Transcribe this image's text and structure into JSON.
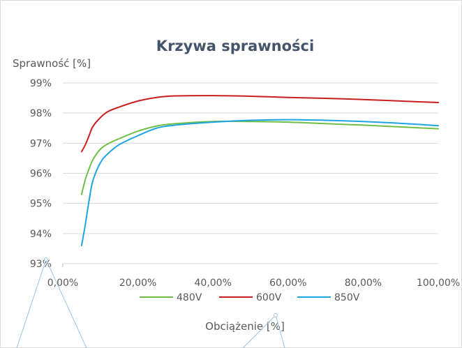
{
  "chart_data": {
    "type": "line",
    "title": "Krzywa sprawności",
    "ylabel": "Sprawność [%]",
    "xlabel": "Obciążenie [%]",
    "xlim": [
      0,
      100
    ],
    "ylim": [
      93,
      99
    ],
    "x_ticks": [
      0,
      20,
      40,
      60,
      80,
      100
    ],
    "x_tick_labels": [
      "0,00%",
      "20,00%",
      "40,00%",
      "60,00%",
      "80,00%",
      "100,00%"
    ],
    "y_ticks": [
      93,
      94,
      95,
      96,
      97,
      98,
      99
    ],
    "y_tick_labels": [
      "93%",
      "94%",
      "95%",
      "96%",
      "97%",
      "98%",
      "99%"
    ],
    "grid": "horizontal",
    "legend_position": "bottom",
    "series": [
      {
        "name": "480V",
        "color": "#70bf44",
        "x": [
          5,
          6,
          7,
          8,
          10,
          12,
          15,
          20,
          25,
          30,
          40,
          50,
          60,
          70,
          80,
          90,
          100
        ],
        "y": [
          95.3,
          95.8,
          96.15,
          96.45,
          96.8,
          96.98,
          97.15,
          97.4,
          97.57,
          97.65,
          97.72,
          97.72,
          97.7,
          97.65,
          97.6,
          97.54,
          97.48
        ]
      },
      {
        "name": "600V",
        "color": "#c81e1e",
        "x": [
          5,
          6,
          7,
          8,
          10,
          12,
          15,
          20,
          25,
          30,
          40,
          50,
          60,
          70,
          80,
          90,
          100
        ],
        "y": [
          96.72,
          96.95,
          97.25,
          97.55,
          97.85,
          98.05,
          98.2,
          98.4,
          98.52,
          98.57,
          98.58,
          98.56,
          98.52,
          98.49,
          98.45,
          98.4,
          98.35
        ]
      },
      {
        "name": "850V",
        "color": "#1ea5e1",
        "x": [
          5,
          6,
          7,
          8,
          10,
          12,
          15,
          20,
          25,
          30,
          40,
          50,
          60,
          70,
          80,
          90,
          100
        ],
        "y": [
          93.6,
          94.3,
          95.1,
          95.75,
          96.35,
          96.65,
          96.95,
          97.25,
          97.5,
          97.6,
          97.7,
          97.76,
          97.78,
          97.76,
          97.72,
          97.66,
          97.58
        ]
      }
    ]
  }
}
